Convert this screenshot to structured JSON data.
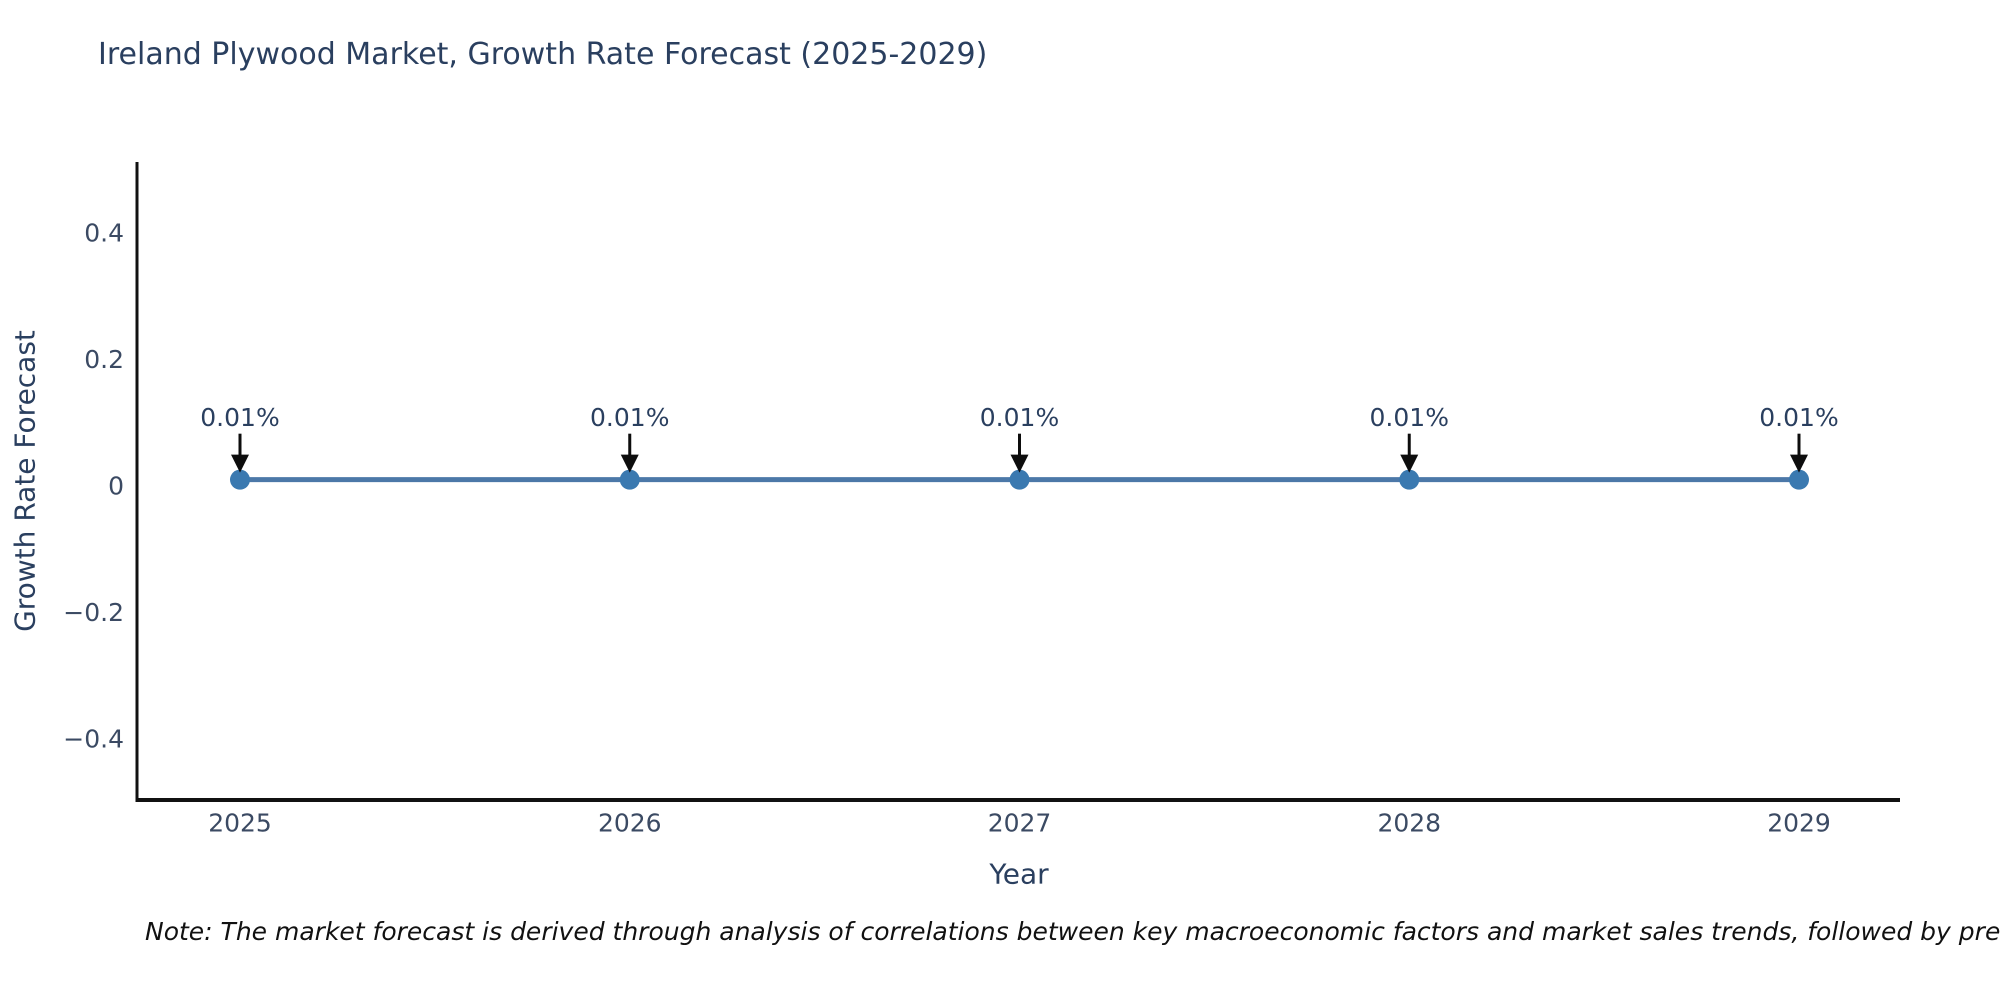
{
  "title": "Ireland Plywood Market, Growth Rate Forecast (2025-2029)",
  "note": "Note: The market forecast is derived through analysis of correlations between key macroeconomic factors and market sales trends, followed by predictive modeling to project future sa",
  "chart_data": {
    "type": "line",
    "title": "Ireland Plywood Market, Growth Rate Forecast (2025-2029)",
    "xlabel": "Year",
    "ylabel": "Growth Rate Forecast",
    "x": [
      2025,
      2026,
      2027,
      2028,
      2029
    ],
    "series": [
      {
        "name": "Growth Rate Forecast",
        "values": [
          0.01,
          0.01,
          0.01,
          0.01,
          0.01
        ],
        "point_labels": [
          "0.01%",
          "0.01%",
          "0.01%",
          "0.01%",
          "0.01%"
        ]
      }
    ],
    "xticks": [
      {
        "label": "2025",
        "value": 2025
      },
      {
        "label": "2026",
        "value": 2026
      },
      {
        "label": "2027",
        "value": 2027
      },
      {
        "label": "2028",
        "value": 2028
      },
      {
        "label": "2029",
        "value": 2029
      }
    ],
    "yticks": [
      {
        "label": "0.4",
        "value": 0.4
      },
      {
        "label": "0.2",
        "value": 0.2
      },
      {
        "label": "0",
        "value": 0
      },
      {
        "label": "−0.2",
        "value": -0.2
      },
      {
        "label": "−0.4",
        "value": -0.4
      }
    ],
    "ylim": [
      -0.5,
      0.51
    ],
    "xlim": [
      2024.74,
      2029.26
    ],
    "grid": false,
    "legend": false,
    "annotations_have_arrows": true,
    "colors": {
      "line": "#4c78a8",
      "marker": "#3a79b0",
      "arrow": "#0d0d0d",
      "annotation_text": "#2a3f5f",
      "tick_text": "#3b4a63",
      "axis_line": "#111111",
      "title_text": "#2a3f5f",
      "note_text": "#111111",
      "background": "#ffffff"
    }
  }
}
